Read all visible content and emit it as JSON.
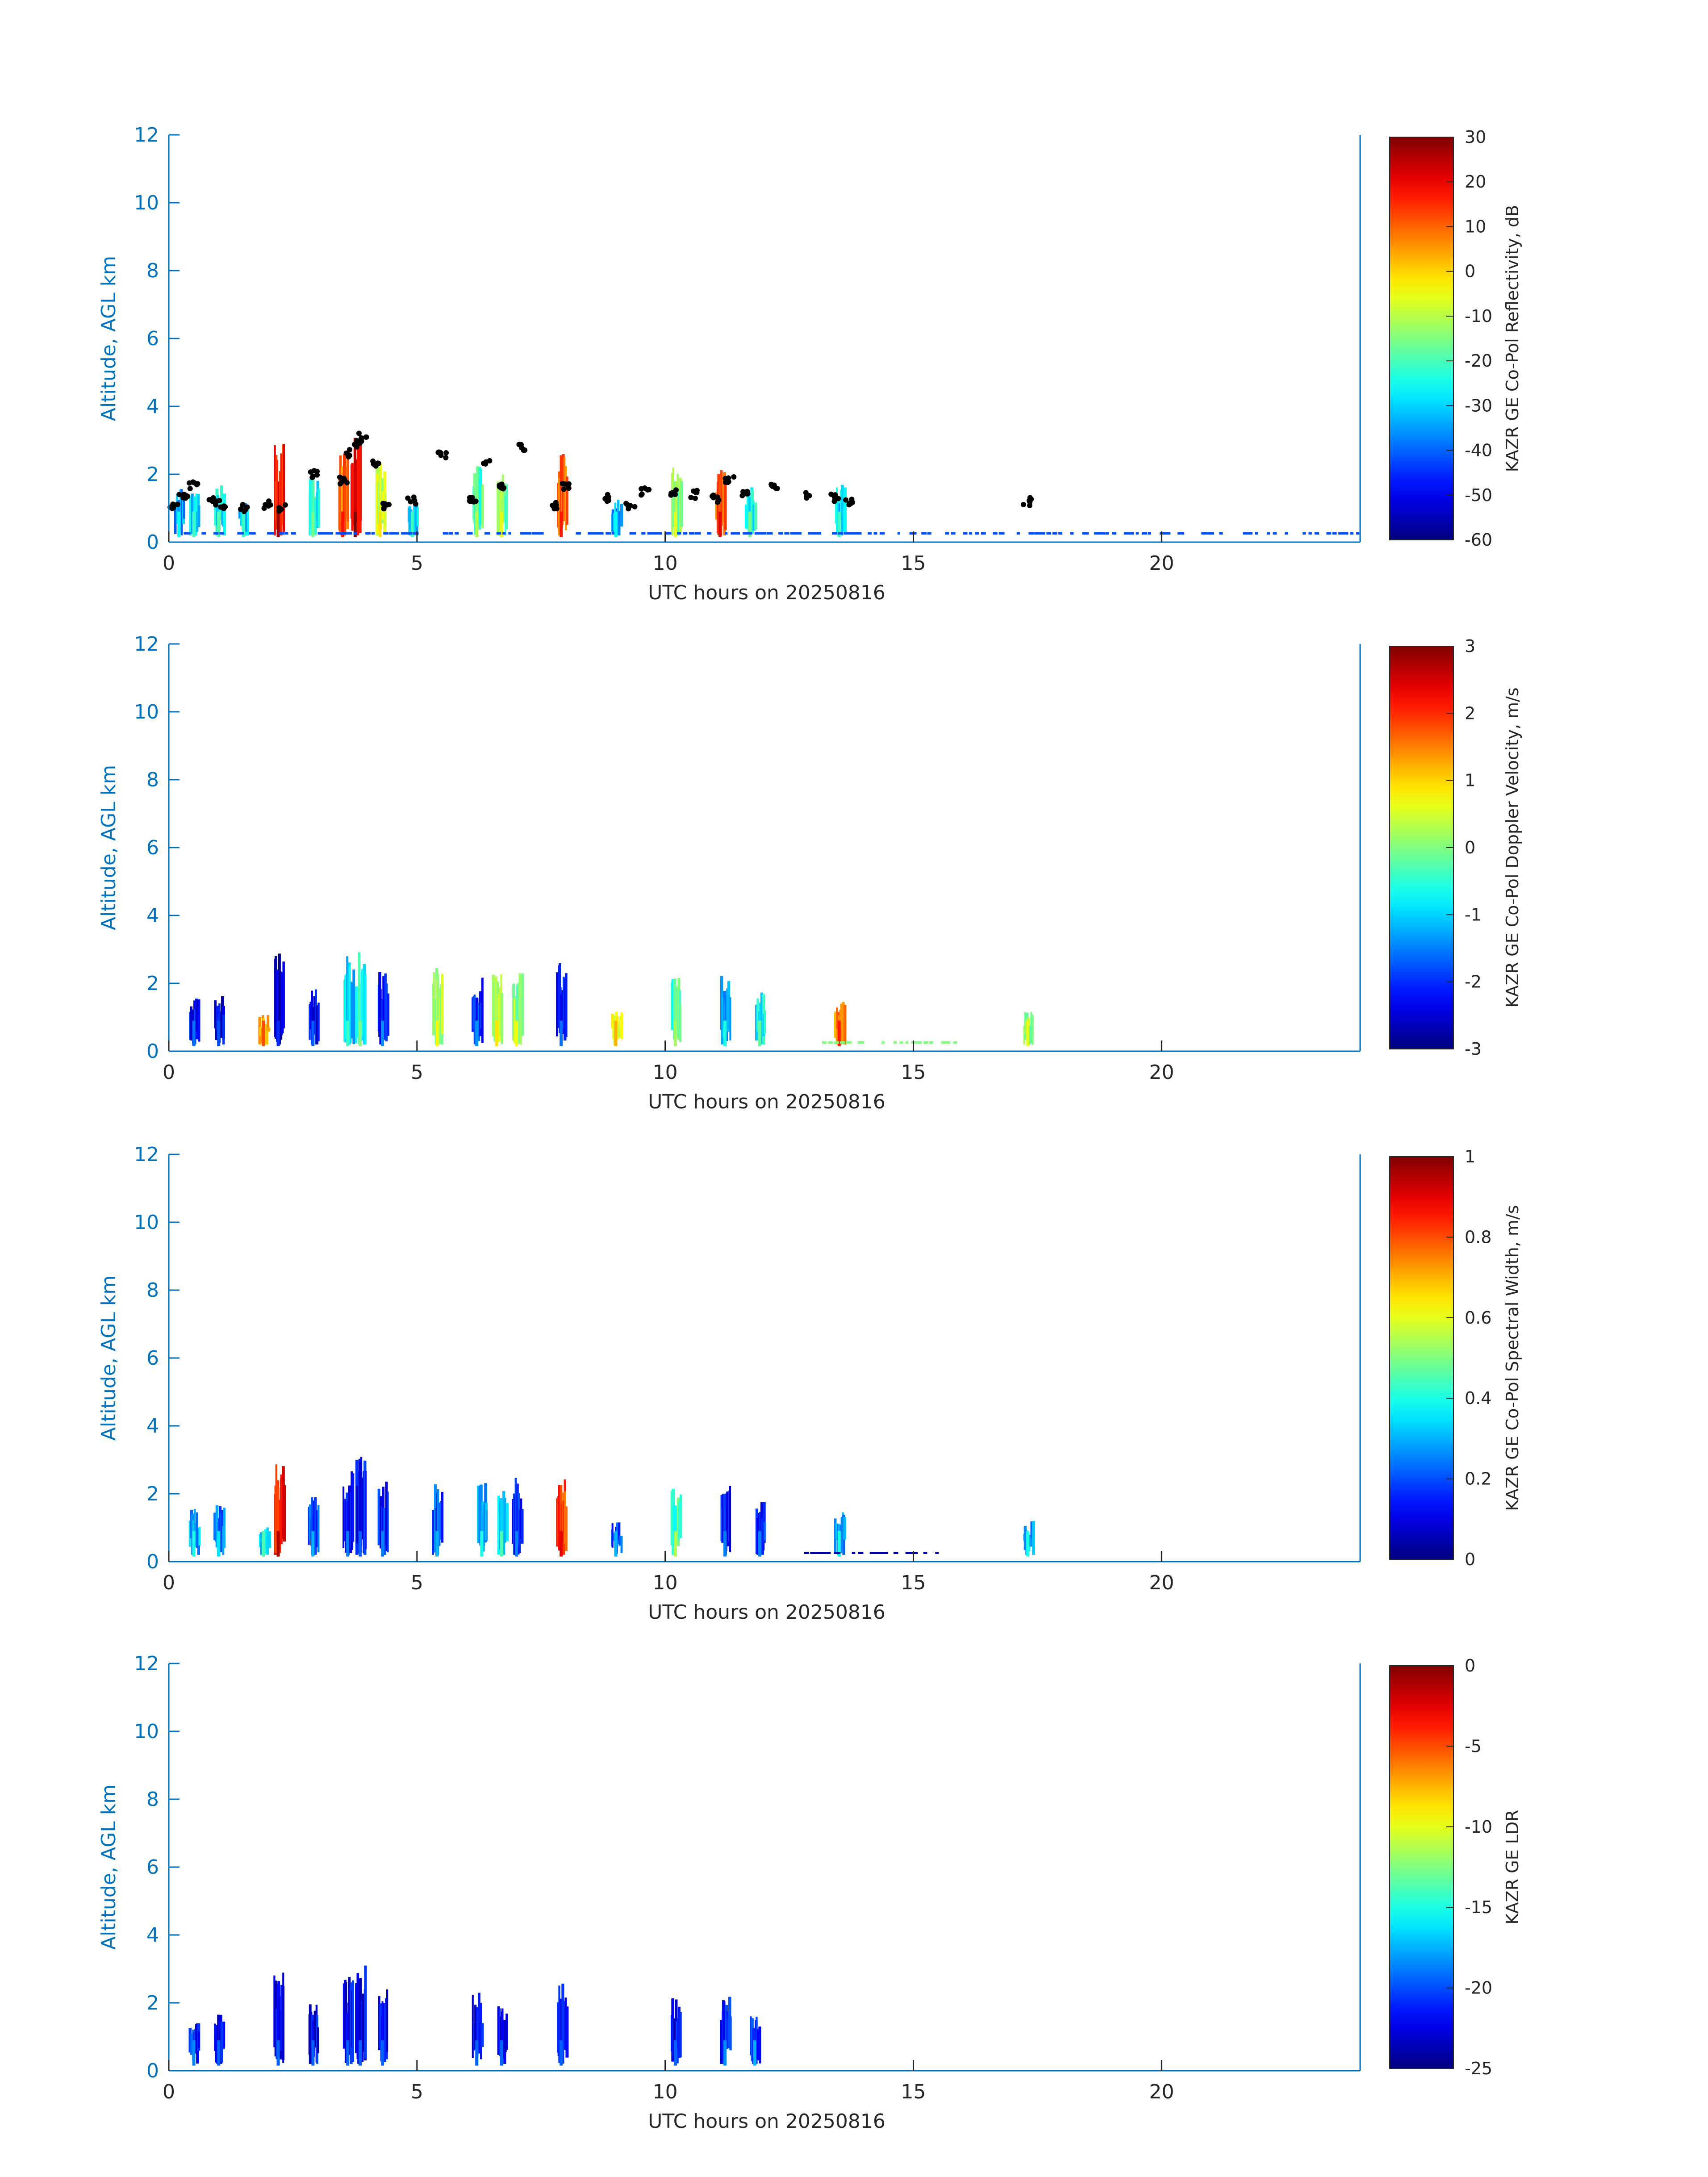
{
  "chart_data": [
    {
      "type": "heatmap",
      "xlabel": "UTC hours on 20250816",
      "ylabel": "Altitude, AGL km",
      "xlim": [
        0,
        24
      ],
      "ylim": [
        0,
        12
      ],
      "xticks": [
        0,
        5,
        10,
        15,
        20
      ],
      "yticks": [
        0,
        2,
        4,
        6,
        8,
        10,
        12
      ],
      "colorbar": {
        "label": "KAZR GE Co-Pol Reflectivity, dB",
        "range": [
          -60,
          30
        ],
        "ticks": [
          30,
          20,
          10,
          0,
          -10,
          -20,
          -30,
          -40,
          -50,
          -60
        ]
      },
      "grid": false,
      "colormap": "jet",
      "echoes": [
        {
          "x": 0.2,
          "top": 1.6,
          "value": -35
        },
        {
          "x": 0.5,
          "top": 1.5,
          "value": -30
        },
        {
          "x": 1.0,
          "top": 1.7,
          "value": -28
        },
        {
          "x": 1.5,
          "top": 1.2,
          "value": -30
        },
        {
          "x": 2.2,
          "top": 2.9,
          "value": 18
        },
        {
          "x": 2.9,
          "top": 2.0,
          "value": -25
        },
        {
          "x": 3.5,
          "top": 2.8,
          "value": 8
        },
        {
          "x": 3.75,
          "top": 3.1,
          "value": 22
        },
        {
          "x": 4.25,
          "top": 2.4,
          "value": -10
        },
        {
          "x": 4.9,
          "top": 1.2,
          "value": -30
        },
        {
          "x": 6.2,
          "top": 2.3,
          "value": -20
        },
        {
          "x": 6.7,
          "top": 2.1,
          "value": -15
        },
        {
          "x": 7.9,
          "top": 2.6,
          "value": 8
        },
        {
          "x": 9.0,
          "top": 1.3,
          "value": -35
        },
        {
          "x": 10.2,
          "top": 2.4,
          "value": -15
        },
        {
          "x": 11.1,
          "top": 2.2,
          "value": 12
        },
        {
          "x": 11.7,
          "top": 1.7,
          "value": -25
        },
        {
          "x": 13.5,
          "top": 1.7,
          "value": -30
        }
      ],
      "cloud_base_points": [
        {
          "x": 0.1,
          "y": 1.1
        },
        {
          "x": 0.3,
          "y": 1.3
        },
        {
          "x": 0.5,
          "y": 1.7
        },
        {
          "x": 0.9,
          "y": 1.2
        },
        {
          "x": 1.1,
          "y": 1.1
        },
        {
          "x": 1.5,
          "y": 1.0
        },
        {
          "x": 2.0,
          "y": 1.1
        },
        {
          "x": 2.3,
          "y": 1.0
        },
        {
          "x": 2.9,
          "y": 2.0
        },
        {
          "x": 3.5,
          "y": 1.8
        },
        {
          "x": 3.6,
          "y": 2.6
        },
        {
          "x": 3.8,
          "y": 2.9
        },
        {
          "x": 3.9,
          "y": 3.1
        },
        {
          "x": 4.2,
          "y": 2.3
        },
        {
          "x": 4.4,
          "y": 1.1
        },
        {
          "x": 4.9,
          "y": 1.2
        },
        {
          "x": 5.5,
          "y": 2.6
        },
        {
          "x": 6.1,
          "y": 1.3
        },
        {
          "x": 6.4,
          "y": 2.4
        },
        {
          "x": 6.7,
          "y": 1.6
        },
        {
          "x": 7.1,
          "y": 2.8
        },
        {
          "x": 7.8,
          "y": 1.1
        },
        {
          "x": 8.0,
          "y": 1.6
        },
        {
          "x": 8.8,
          "y": 1.3
        },
        {
          "x": 9.3,
          "y": 1.1
        },
        {
          "x": 9.6,
          "y": 1.5
        },
        {
          "x": 10.2,
          "y": 1.5
        },
        {
          "x": 10.6,
          "y": 1.4
        },
        {
          "x": 11.0,
          "y": 1.3
        },
        {
          "x": 11.3,
          "y": 1.8
        },
        {
          "x": 11.6,
          "y": 1.4
        },
        {
          "x": 12.2,
          "y": 1.7
        },
        {
          "x": 12.9,
          "y": 1.4
        },
        {
          "x": 13.4,
          "y": 1.3
        },
        {
          "x": 13.7,
          "y": 1.2
        },
        {
          "x": 17.3,
          "y": 1.2
        }
      ],
      "surface_band": {
        "y": 0.25,
        "segments": [
          [
            0.3,
            2.5
          ],
          [
            3.0,
            7.5
          ],
          [
            8.2,
            13.9
          ],
          [
            13.0,
            15.9
          ],
          [
            16.0,
            24.0
          ]
        ]
      }
    },
    {
      "type": "heatmap",
      "xlabel": "UTC hours on 20250816",
      "ylabel": "Altitude, AGL km",
      "xlim": [
        0,
        24
      ],
      "ylim": [
        0,
        12
      ],
      "xticks": [
        0,
        5,
        10,
        15,
        20
      ],
      "yticks": [
        0,
        2,
        4,
        6,
        8,
        10,
        12
      ],
      "colorbar": {
        "label": "KAZR GE Co-Pol Doppler Velocity, m/s",
        "range": [
          -3,
          3
        ],
        "ticks": [
          3,
          2,
          1,
          0,
          -1,
          -2,
          -3
        ]
      },
      "grid": false,
      "colormap": "jet",
      "echoes": [
        {
          "x": 0.5,
          "top": 1.6,
          "value": -2.2
        },
        {
          "x": 1.0,
          "top": 1.7,
          "value": -2.4
        },
        {
          "x": 1.9,
          "top": 1.1,
          "value": 1.2
        },
        {
          "x": 2.2,
          "top": 2.9,
          "value": -2.6
        },
        {
          "x": 2.9,
          "top": 2.0,
          "value": -2.3
        },
        {
          "x": 3.6,
          "top": 2.8,
          "value": -1.0
        },
        {
          "x": 3.85,
          "top": 3.1,
          "value": -0.6
        },
        {
          "x": 4.3,
          "top": 2.4,
          "value": -2.0
        },
        {
          "x": 5.4,
          "top": 2.5,
          "value": 0.2
        },
        {
          "x": 6.2,
          "top": 2.3,
          "value": -2.0
        },
        {
          "x": 6.6,
          "top": 2.3,
          "value": 0.3
        },
        {
          "x": 7.0,
          "top": 2.5,
          "value": 0.1
        },
        {
          "x": 7.9,
          "top": 2.6,
          "value": -2.2
        },
        {
          "x": 9.0,
          "top": 1.2,
          "value": 0.6
        },
        {
          "x": 10.2,
          "top": 2.3,
          "value": -0.4
        },
        {
          "x": 11.2,
          "top": 2.3,
          "value": -1.2
        },
        {
          "x": 11.9,
          "top": 1.8,
          "value": -0.8
        },
        {
          "x": 13.5,
          "top": 1.5,
          "value": 1.5
        },
        {
          "x": 17.3,
          "top": 1.2,
          "value": 0.0
        }
      ],
      "surface_band": {
        "y": 0.25,
        "segments": [
          [
            12.8,
            15.9
          ]
        ],
        "value": 0.0
      }
    },
    {
      "type": "heatmap",
      "xlabel": "UTC hours on 20250816",
      "ylabel": "Altitude, AGL km",
      "xlim": [
        0,
        24
      ],
      "ylim": [
        0,
        12
      ],
      "xticks": [
        0,
        5,
        10,
        15,
        20
      ],
      "yticks": [
        0,
        2,
        4,
        6,
        8,
        10,
        12
      ],
      "colorbar": {
        "label": "KAZR GE Co-Pol Spectral Width, m/s",
        "range": [
          0,
          1
        ],
        "ticks": [
          1,
          0.8,
          0.6,
          0.4,
          0.2,
          0
        ]
      },
      "grid": false,
      "colormap": "jet",
      "echoes": [
        {
          "x": 0.5,
          "top": 1.6,
          "value": 0.3
        },
        {
          "x": 1.0,
          "top": 1.7,
          "value": 0.25
        },
        {
          "x": 1.9,
          "top": 1.1,
          "value": 0.35
        },
        {
          "x": 2.2,
          "top": 2.9,
          "value": 0.85
        },
        {
          "x": 2.9,
          "top": 2.0,
          "value": 0.2
        },
        {
          "x": 3.6,
          "top": 2.8,
          "value": 0.15
        },
        {
          "x": 3.85,
          "top": 3.1,
          "value": 0.12
        },
        {
          "x": 4.3,
          "top": 2.4,
          "value": 0.15
        },
        {
          "x": 5.4,
          "top": 2.5,
          "value": 0.2
        },
        {
          "x": 6.3,
          "top": 2.4,
          "value": 0.3
        },
        {
          "x": 6.7,
          "top": 2.3,
          "value": 0.35
        },
        {
          "x": 7.0,
          "top": 2.5,
          "value": 0.15
        },
        {
          "x": 7.9,
          "top": 2.6,
          "value": 0.8
        },
        {
          "x": 9.0,
          "top": 1.2,
          "value": 0.2
        },
        {
          "x": 10.2,
          "top": 2.3,
          "value": 0.45
        },
        {
          "x": 11.2,
          "top": 2.3,
          "value": 0.15
        },
        {
          "x": 11.9,
          "top": 1.8,
          "value": 0.15
        },
        {
          "x": 13.5,
          "top": 1.5,
          "value": 0.3
        },
        {
          "x": 17.3,
          "top": 1.2,
          "value": 0.3
        }
      ],
      "surface_band": {
        "y": 0.25,
        "segments": [
          [
            12.8,
            15.9
          ]
        ],
        "value": 0.05
      }
    },
    {
      "type": "heatmap",
      "xlabel": "UTC hours on 20250816",
      "ylabel": "Altitude, AGL km",
      "xlim": [
        0,
        24
      ],
      "ylim": [
        0,
        12
      ],
      "xticks": [
        0,
        5,
        10,
        15,
        20
      ],
      "yticks": [
        0,
        2,
        4,
        6,
        8,
        10,
        12
      ],
      "colorbar": {
        "label": "KAZR GE LDR",
        "range": [
          -25,
          0
        ],
        "ticks": [
          0,
          -5,
          -10,
          -15,
          -20,
          -25
        ]
      },
      "grid": false,
      "colormap": "jet",
      "echoes": [
        {
          "x": 0.5,
          "top": 1.6,
          "value": -21
        },
        {
          "x": 1.0,
          "top": 1.7,
          "value": -22
        },
        {
          "x": 2.2,
          "top": 2.9,
          "value": -22
        },
        {
          "x": 2.9,
          "top": 2.0,
          "value": -22
        },
        {
          "x": 3.6,
          "top": 2.8,
          "value": -22
        },
        {
          "x": 3.85,
          "top": 3.1,
          "value": -22
        },
        {
          "x": 4.3,
          "top": 2.4,
          "value": -22
        },
        {
          "x": 6.2,
          "top": 2.3,
          "value": -22
        },
        {
          "x": 6.7,
          "top": 2.3,
          "value": -22
        },
        {
          "x": 7.9,
          "top": 2.6,
          "value": -22
        },
        {
          "x": 10.2,
          "top": 2.3,
          "value": -22
        },
        {
          "x": 11.2,
          "top": 2.2,
          "value": -21
        },
        {
          "x": 11.8,
          "top": 1.7,
          "value": -20
        }
      ]
    }
  ]
}
